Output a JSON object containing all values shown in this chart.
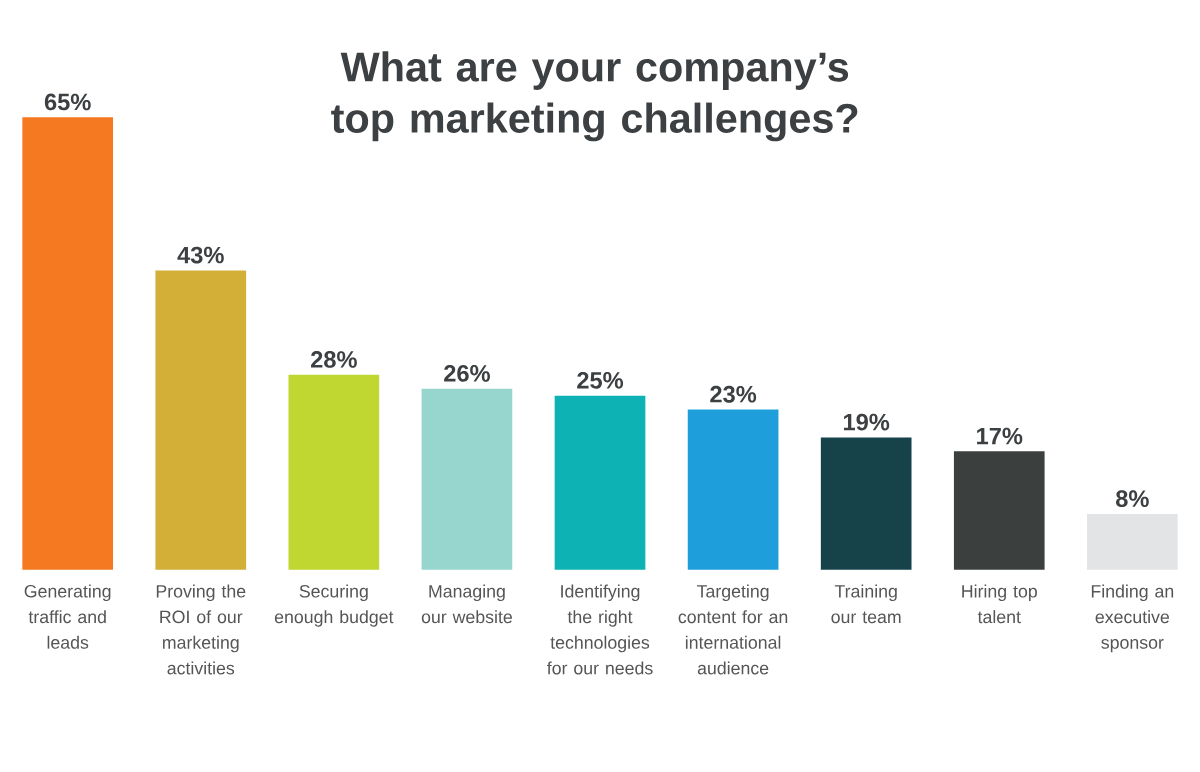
{
  "chart_data": {
    "type": "bar",
    "title": "What are your company’s top marketing challenges?",
    "categories": [
      "Generating traffic and leads",
      "Proving the ROI of our marketing activities",
      "Securing enough budget",
      "Managing our website",
      "Identifying the right technologies for our needs",
      "Targeting content for an international audience",
      "Training our team",
      "Hiring top talent",
      "Finding an executive sponsor"
    ],
    "values": [
      65,
      43,
      28,
      26,
      25,
      23,
      19,
      17,
      8
    ],
    "value_labels": [
      "65%",
      "43%",
      "28%",
      "26%",
      "25%",
      "23%",
      "19%",
      "17%",
      "8%"
    ],
    "colors": [
      "#f47920",
      "#d4af37",
      "#c0d631",
      "#96d6cf",
      "#0db2b5",
      "#1e9fdb",
      "#16424a",
      "#3b403f",
      "#e2e4e6"
    ]
  }
}
